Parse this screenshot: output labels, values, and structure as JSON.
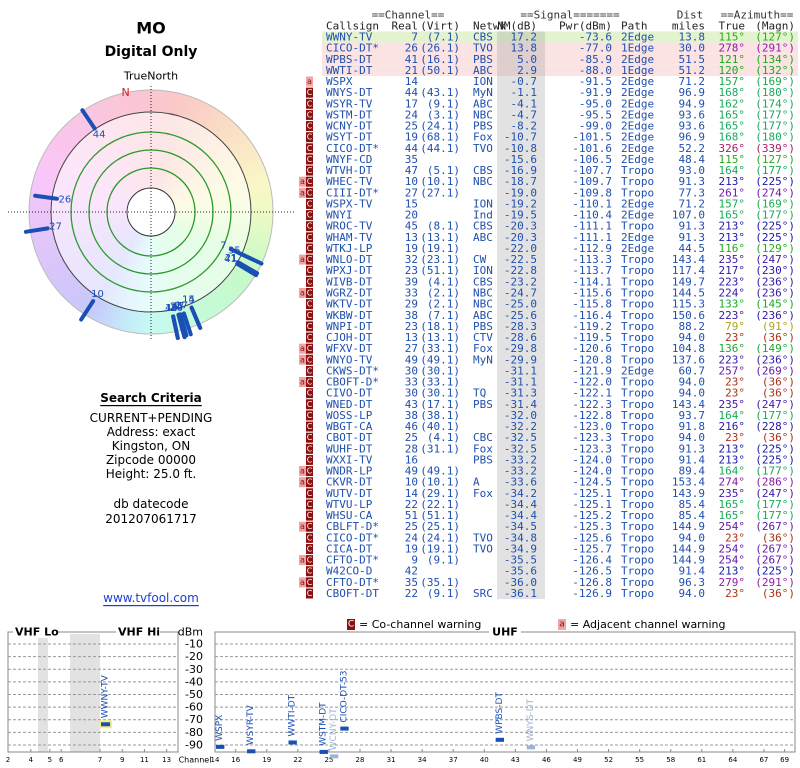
{
  "header": {
    "title": "MO",
    "subtitle": "Digital Only",
    "north_label": "TrueNorth",
    "north_mark": "N"
  },
  "criteria": {
    "title": "Search Criteria",
    "lines": [
      "CURRENT+PENDING",
      "Address: exact",
      "Kingston, ON",
      "Zipcode 00000",
      "Height: 25.0 ft."
    ],
    "datecode_label": "db datecode",
    "datecode": "201207061717"
  },
  "link": "www.tvfool.com",
  "table": {
    "groups": [
      "==Channel==",
      "==Signal=======",
      "Dist",
      "==Azimuth=="
    ],
    "columns": [
      "Callsign",
      "Real",
      "(Virt)",
      "Netwk",
      "NM(dB)",
      "Pwr(dBm)",
      "Path",
      "miles",
      "True",
      "(Magn)"
    ],
    "rows": [
      {
        "warn": [],
        "call": "WWNY-TV",
        "real": "7",
        "virt": "(7.1)",
        "net": "CBS",
        "nm": "17.2",
        "pwr": "-73.6",
        "path": "2Edge",
        "dist": "13.8",
        "az": "115°",
        "magn": "(127°)",
        "bg": "#e4f3cf"
      },
      {
        "warn": [],
        "call": "CICO-DT*",
        "real": "26",
        "virt": "(26.1)",
        "net": "TVO",
        "nm": "13.8",
        "pwr": "-77.0",
        "path": "1Edge",
        "dist": "30.0",
        "az": "278°",
        "magn": "(291°)",
        "bg": "#fbe3e3"
      },
      {
        "warn": [],
        "call": "WPBS-DT",
        "real": "41",
        "virt": "(16.1)",
        "net": "PBS",
        "nm": "5.0",
        "pwr": "-85.9",
        "path": "2Edge",
        "dist": "51.5",
        "az": "121°",
        "magn": "(134°)",
        "bg": "#fbe3e3"
      },
      {
        "warn": [],
        "call": "WWTI-DT",
        "real": "21",
        "virt": "(50.1)",
        "net": "ABC",
        "nm": "2.9",
        "pwr": "-88.0",
        "path": "1Edge",
        "dist": "51.2",
        "az": "120°",
        "magn": "(132°)",
        "bg": "#fbe3e3"
      },
      {
        "warn": [
          "a"
        ],
        "call": "WSPX",
        "real": "14",
        "virt": null,
        "net": "ION",
        "nm": "-0.7",
        "pwr": "-91.5",
        "path": "2Edge",
        "dist": "71.2",
        "az": "157°",
        "magn": "(169°)"
      },
      {
        "warn": [
          "C"
        ],
        "call": "WNYS-DT",
        "real": "44",
        "virt": "(43.1)",
        "net": "MyN",
        "nm": "-1.1",
        "pwr": "-91.9",
        "path": "2Edge",
        "dist": "96.9",
        "az": "168°",
        "magn": "(180°)"
      },
      {
        "warn": [
          "C"
        ],
        "call": "WSYR-TV",
        "real": "17",
        "virt": "(9.1)",
        "net": "ABC",
        "nm": "-4.1",
        "pwr": "-95.0",
        "path": "2Edge",
        "dist": "94.9",
        "az": "162°",
        "magn": "(174°)"
      },
      {
        "warn": [
          "C"
        ],
        "call": "WSTM-DT",
        "real": "24",
        "virt": "(3.1)",
        "net": "NBC",
        "nm": "-4.7",
        "pwr": "-95.5",
        "path": "2Edge",
        "dist": "93.6",
        "az": "165°",
        "magn": "(177°)"
      },
      {
        "warn": [
          "C"
        ],
        "call": "WCNY-DT",
        "real": "25",
        "virt": "(24.1)",
        "net": "PBS",
        "nm": "-8.2",
        "pwr": "-99.0",
        "path": "2Edge",
        "dist": "93.6",
        "az": "165°",
        "magn": "(177°)"
      },
      {
        "warn": [
          "C"
        ],
        "call": "WSYT-DT",
        "real": "19",
        "virt": "(68.1)",
        "net": "Fox",
        "nm": "-10.7",
        "pwr": "-101.5",
        "path": "2Edge",
        "dist": "96.9",
        "az": "168°",
        "magn": "(180°)"
      },
      {
        "warn": [
          "C"
        ],
        "call": "CICO-DT*",
        "real": "44",
        "virt": "(44.1)",
        "net": "TVO",
        "nm": "-10.8",
        "pwr": "-101.6",
        "path": "2Edge",
        "dist": "52.2",
        "az": "326°",
        "magn": "(339°)"
      },
      {
        "warn": [
          "C"
        ],
        "call": "WNYF-CD",
        "real": "35",
        "virt": null,
        "net": null,
        "nm": "-15.6",
        "pwr": "-106.5",
        "path": "2Edge",
        "dist": "48.4",
        "az": "115°",
        "magn": "(127°)"
      },
      {
        "warn": [
          "C"
        ],
        "call": "WTVH-DT",
        "real": "47",
        "virt": "(5.1)",
        "net": "CBS",
        "nm": "-16.9",
        "pwr": "-107.7",
        "path": "Tropo",
        "dist": "93.0",
        "az": "164°",
        "magn": "(177°)"
      },
      {
        "warn": [
          "a",
          "C"
        ],
        "call": "WHEC-TV",
        "real": "10",
        "virt": "(10.1)",
        "net": "NBC",
        "nm": "-18.7",
        "pwr": "-109.7",
        "path": "Tropo",
        "dist": "91.3",
        "az": "213°",
        "magn": "(225°)"
      },
      {
        "warn": [
          "a",
          "C"
        ],
        "call": "CIII-DT*",
        "real": "27",
        "virt": "(27.1)",
        "net": null,
        "nm": "-19.0",
        "pwr": "-109.8",
        "path": "Tropo",
        "dist": "77.3",
        "az": "261°",
        "magn": "(274°)"
      },
      {
        "warn": [
          "C"
        ],
        "call": "WSPX-TV",
        "real": "15",
        "virt": null,
        "net": "ION",
        "nm": "-19.2",
        "pwr": "-110.1",
        "path": "2Edge",
        "dist": "71.2",
        "az": "157°",
        "magn": "(169°)"
      },
      {
        "warn": [
          "C"
        ],
        "call": "WNYI",
        "real": "20",
        "virt": null,
        "net": "Ind",
        "nm": "-19.5",
        "pwr": "-110.4",
        "path": "2Edge",
        "dist": "107.0",
        "az": "165°",
        "magn": "(177°)"
      },
      {
        "warn": [
          "C"
        ],
        "call": "WROC-TV",
        "real": "45",
        "virt": "(8.1)",
        "net": "CBS",
        "nm": "-20.3",
        "pwr": "-111.1",
        "path": "Tropo",
        "dist": "91.3",
        "az": "213°",
        "magn": "(225°)"
      },
      {
        "warn": [
          "C"
        ],
        "call": "WHAM-TV",
        "real": "13",
        "virt": "(13.1)",
        "net": "ABC",
        "nm": "-20.3",
        "pwr": "-111.1",
        "path": "2Edge",
        "dist": "91.3",
        "az": "213°",
        "magn": "(225°)"
      },
      {
        "warn": [
          "C"
        ],
        "call": "WTKJ-LP",
        "real": "19",
        "virt": "(19.1)",
        "net": null,
        "nm": "-22.0",
        "pwr": "-112.9",
        "path": "2Edge",
        "dist": "44.5",
        "az": "116°",
        "magn": "(129°)"
      },
      {
        "warn": [
          "a",
          "C"
        ],
        "call": "WNLO-DT",
        "real": "32",
        "virt": "(23.1)",
        "net": "CW",
        "nm": "-22.5",
        "pwr": "-113.3",
        "path": "Tropo",
        "dist": "143.4",
        "az": "235°",
        "magn": "(247°)"
      },
      {
        "warn": [
          "C"
        ],
        "call": "WPXJ-DT",
        "real": "23",
        "virt": "(51.1)",
        "net": "ION",
        "nm": "-22.8",
        "pwr": "-113.7",
        "path": "Tropo",
        "dist": "117.4",
        "az": "217°",
        "magn": "(230°)"
      },
      {
        "warn": [
          "C"
        ],
        "call": "WIVB-DT",
        "real": "39",
        "virt": "(4.1)",
        "net": "CBS",
        "nm": "-23.2",
        "pwr": "-114.1",
        "path": "Tropo",
        "dist": "149.7",
        "az": "223°",
        "magn": "(236°)"
      },
      {
        "warn": [
          "a",
          "C"
        ],
        "call": "WGRZ-DT",
        "real": "33",
        "virt": "(2.1)",
        "net": "NBC",
        "nm": "-24.7",
        "pwr": "-115.6",
        "path": "Tropo",
        "dist": "144.5",
        "az": "224°",
        "magn": "(236°)"
      },
      {
        "warn": [
          "C"
        ],
        "call": "WKTV-DT",
        "real": "29",
        "virt": "(2.1)",
        "net": "NBC",
        "nm": "-25.0",
        "pwr": "-115.8",
        "path": "Tropo",
        "dist": "115.3",
        "az": "133°",
        "magn": "(145°)"
      },
      {
        "warn": [
          "C"
        ],
        "call": "WKBW-DT",
        "real": "38",
        "virt": "(7.1)",
        "net": "ABC",
        "nm": "-25.6",
        "pwr": "-116.4",
        "path": "Tropo",
        "dist": "150.6",
        "az": "223°",
        "magn": "(236°)"
      },
      {
        "warn": [
          "C"
        ],
        "call": "WNPI-DT",
        "real": "23",
        "virt": "(18.1)",
        "net": "PBS",
        "nm": "-28.3",
        "pwr": "-119.2",
        "path": "Tropo",
        "dist": "88.2",
        "az": "79°",
        "magn": "(91°)"
      },
      {
        "warn": [
          "C"
        ],
        "call": "CJOH-DT",
        "real": "13",
        "virt": "(13.1)",
        "net": "CTV",
        "nm": "-28.6",
        "pwr": "-119.5",
        "path": "Tropo",
        "dist": "94.0",
        "az": "23°",
        "magn": "(36°)"
      },
      {
        "warn": [
          "a",
          "C"
        ],
        "call": "WFXV-DT",
        "real": "27",
        "virt": "(33.1)",
        "net": "Fox",
        "nm": "-29.8",
        "pwr": "-120.6",
        "path": "Tropo",
        "dist": "104.8",
        "az": "136°",
        "magn": "(149°)"
      },
      {
        "warn": [
          "a",
          "C"
        ],
        "call": "WNYO-TV",
        "real": "49",
        "virt": "(49.1)",
        "net": "MyN",
        "nm": "-29.9",
        "pwr": "-120.8",
        "path": "Tropo",
        "dist": "137.6",
        "az": "223°",
        "magn": "(236°)"
      },
      {
        "warn": [
          "C"
        ],
        "call": "CKWS-DT*",
        "real": "30",
        "virt": "(30.1)",
        "net": null,
        "nm": "-31.1",
        "pwr": "-121.9",
        "path": "2Edge",
        "dist": "60.7",
        "az": "257°",
        "magn": "(269°)"
      },
      {
        "warn": [
          "a",
          "C"
        ],
        "call": "CBOFT-D*",
        "real": "33",
        "virt": "(33.1)",
        "net": null,
        "nm": "-31.1",
        "pwr": "-122.0",
        "path": "Tropo",
        "dist": "94.0",
        "az": "23°",
        "magn": "(36°)"
      },
      {
        "warn": [
          "C"
        ],
        "call": "CIVO-DT",
        "real": "30",
        "virt": "(30.1)",
        "net": "TQ",
        "nm": "-31.3",
        "pwr": "-122.1",
        "path": "Tropo",
        "dist": "94.0",
        "az": "23°",
        "magn": "(36°)"
      },
      {
        "warn": [
          "C"
        ],
        "call": "WNED-DT",
        "real": "43",
        "virt": "(17.1)",
        "net": "PBS",
        "nm": "-31.4",
        "pwr": "-122.3",
        "path": "Tropo",
        "dist": "143.4",
        "az": "235°",
        "magn": "(247°)"
      },
      {
        "warn": [
          "C"
        ],
        "call": "WOSS-LP",
        "real": "38",
        "virt": "(38.1)",
        "net": null,
        "nm": "-32.0",
        "pwr": "-122.8",
        "path": "Tropo",
        "dist": "93.7",
        "az": "164°",
        "magn": "(177°)"
      },
      {
        "warn": [
          "C"
        ],
        "call": "WBGT-CA",
        "real": "46",
        "virt": "(40.1)",
        "net": null,
        "nm": "-32.2",
        "pwr": "-123.0",
        "path": "Tropo",
        "dist": "91.8",
        "az": "216°",
        "magn": "(228°)"
      },
      {
        "warn": [
          "C"
        ],
        "call": "CBOT-DT",
        "real": "25",
        "virt": "(4.1)",
        "net": "CBC",
        "nm": "-32.5",
        "pwr": "-123.3",
        "path": "Tropo",
        "dist": "94.0",
        "az": "23°",
        "magn": "(36°)"
      },
      {
        "warn": [
          "C"
        ],
        "call": "WUHF-DT",
        "real": "28",
        "virt": "(31.1)",
        "net": "Fox",
        "nm": "-32.5",
        "pwr": "-123.3",
        "path": "Tropo",
        "dist": "91.3",
        "az": "213°",
        "magn": "(225°)"
      },
      {
        "warn": [
          "C"
        ],
        "call": "WXXI-TV",
        "real": "16",
        "virt": null,
        "net": "PBS",
        "nm": "-33.2",
        "pwr": "-124.0",
        "path": "Tropo",
        "dist": "91.4",
        "az": "213°",
        "magn": "(225°)"
      },
      {
        "warn": [
          "a",
          "C"
        ],
        "call": "WNDR-LP",
        "real": "49",
        "virt": "(49.1)",
        "net": null,
        "nm": "-33.2",
        "pwr": "-124.0",
        "path": "Tropo",
        "dist": "89.4",
        "az": "164°",
        "magn": "(177°)"
      },
      {
        "warn": [
          "a",
          "C"
        ],
        "call": "CKVR-DT",
        "real": "10",
        "virt": "(10.1)",
        "net": "A",
        "nm": "-33.6",
        "pwr": "-124.5",
        "path": "Tropo",
        "dist": "153.4",
        "az": "274°",
        "magn": "(286°)"
      },
      {
        "warn": [
          "C"
        ],
        "call": "WUTV-DT",
        "real": "14",
        "virt": "(29.1)",
        "net": "Fox",
        "nm": "-34.2",
        "pwr": "-125.1",
        "path": "Tropo",
        "dist": "143.9",
        "az": "235°",
        "magn": "(247°)"
      },
      {
        "warn": [
          "C"
        ],
        "call": "WTVU-LP",
        "real": "22",
        "virt": "(22.1)",
        "net": null,
        "nm": "-34.4",
        "pwr": "-125.1",
        "path": "Tropo",
        "dist": "85.4",
        "az": "165°",
        "magn": "(177°)"
      },
      {
        "warn": [
          "C"
        ],
        "call": "WHSU-CA",
        "real": "51",
        "virt": "(51.1)",
        "net": null,
        "nm": "-34.4",
        "pwr": "-125.2",
        "path": "Tropo",
        "dist": "85.4",
        "az": "165°",
        "magn": "(177°)"
      },
      {
        "warn": [
          "a",
          "C"
        ],
        "call": "CBLFT-D*",
        "real": "25",
        "virt": "(25.1)",
        "net": null,
        "nm": "-34.5",
        "pwr": "-125.3",
        "path": "Tropo",
        "dist": "144.9",
        "az": "254°",
        "magn": "(267°)"
      },
      {
        "warn": [
          "C"
        ],
        "call": "CICO-DT*",
        "real": "24",
        "virt": "(24.1)",
        "net": "TVO",
        "nm": "-34.8",
        "pwr": "-125.6",
        "path": "Tropo",
        "dist": "94.0",
        "az": "23°",
        "magn": "(36°)"
      },
      {
        "warn": [
          "C"
        ],
        "call": "CICA-DT",
        "real": "19",
        "virt": "(19.1)",
        "net": "TVO",
        "nm": "-34.9",
        "pwr": "-125.7",
        "path": "Tropo",
        "dist": "144.9",
        "az": "254°",
        "magn": "(267°)"
      },
      {
        "warn": [
          "a",
          "C"
        ],
        "call": "CFTO-DT*",
        "real": "9",
        "virt": "(9.1)",
        "net": null,
        "nm": "-35.5",
        "pwr": "-126.4",
        "path": "Tropo",
        "dist": "144.9",
        "az": "254°",
        "magn": "(267°)"
      },
      {
        "warn": [
          "C"
        ],
        "call": "W42CO-D",
        "real": "42",
        "virt": null,
        "net": null,
        "nm": "-35.6",
        "pwr": "-126.5",
        "path": "Tropo",
        "dist": "91.4",
        "az": "213°",
        "magn": "(225°)"
      },
      {
        "warn": [
          "a",
          "C"
        ],
        "call": "CFTO-DT*",
        "real": "35",
        "virt": "(35.1)",
        "net": null,
        "nm": "-36.0",
        "pwr": "-126.8",
        "path": "Tropo",
        "dist": "96.3",
        "az": "279°",
        "magn": "(291°)"
      },
      {
        "warn": [
          "C"
        ],
        "call": "CBOFT-DT",
        "real": "22",
        "virt": "(9.1)",
        "net": "SRC",
        "nm": "-36.1",
        "pwr": "-126.9",
        "path": "Tropo",
        "dist": "94.0",
        "az": "23°",
        "magn": "(36°)"
      }
    ]
  },
  "legend": {
    "co": {
      "icon": "C",
      "text": "= Co-channel warning"
    },
    "adj": {
      "icon": "a",
      "text": "= Adjacent channel warning"
    }
  },
  "chart_data": {
    "type": "bar",
    "band_labels": [
      "VHF Lo",
      "VHF Hi",
      "UHF"
    ],
    "y_label": "dBm",
    "x_label": "Channel",
    "ylim": [
      -100,
      0
    ],
    "yticks": [
      -10,
      -20,
      -30,
      -40,
      -50,
      -60,
      -70,
      -80,
      -90
    ],
    "grid": true,
    "vhf_xticks": [
      2,
      4,
      5,
      6,
      7,
      9,
      11,
      13
    ],
    "uhf_xlim": [
      14,
      70
    ],
    "uhf_xticks": [
      14,
      16,
      19,
      22,
      25,
      28,
      31,
      34,
      37,
      40,
      43,
      46,
      49,
      52,
      55,
      58,
      61,
      64,
      67,
      69
    ],
    "categories": [
      "WWNY-TV",
      "WSPX",
      "WSYR-TV",
      "WWTI-DT",
      "WSTM-DT",
      "WCNY-DT",
      "CICO-DT-53",
      "WPBS-DT",
      "WNYS-DT"
    ],
    "x": [
      7,
      14,
      17,
      21,
      24,
      25,
      26,
      41,
      44
    ],
    "values": [
      -73.6,
      -91.5,
      -95.0,
      -88.0,
      -95.5,
      -99.0,
      -77.0,
      -85.9,
      -91.9
    ],
    "colors": [
      "#1a4fb5",
      "#1a4fb5",
      "#1a4fb5",
      "#1a4fb5",
      "#1a4fb5",
      "#9db3da",
      "#1a4fb5",
      "#1a4fb5",
      "#9db3da"
    ]
  }
}
